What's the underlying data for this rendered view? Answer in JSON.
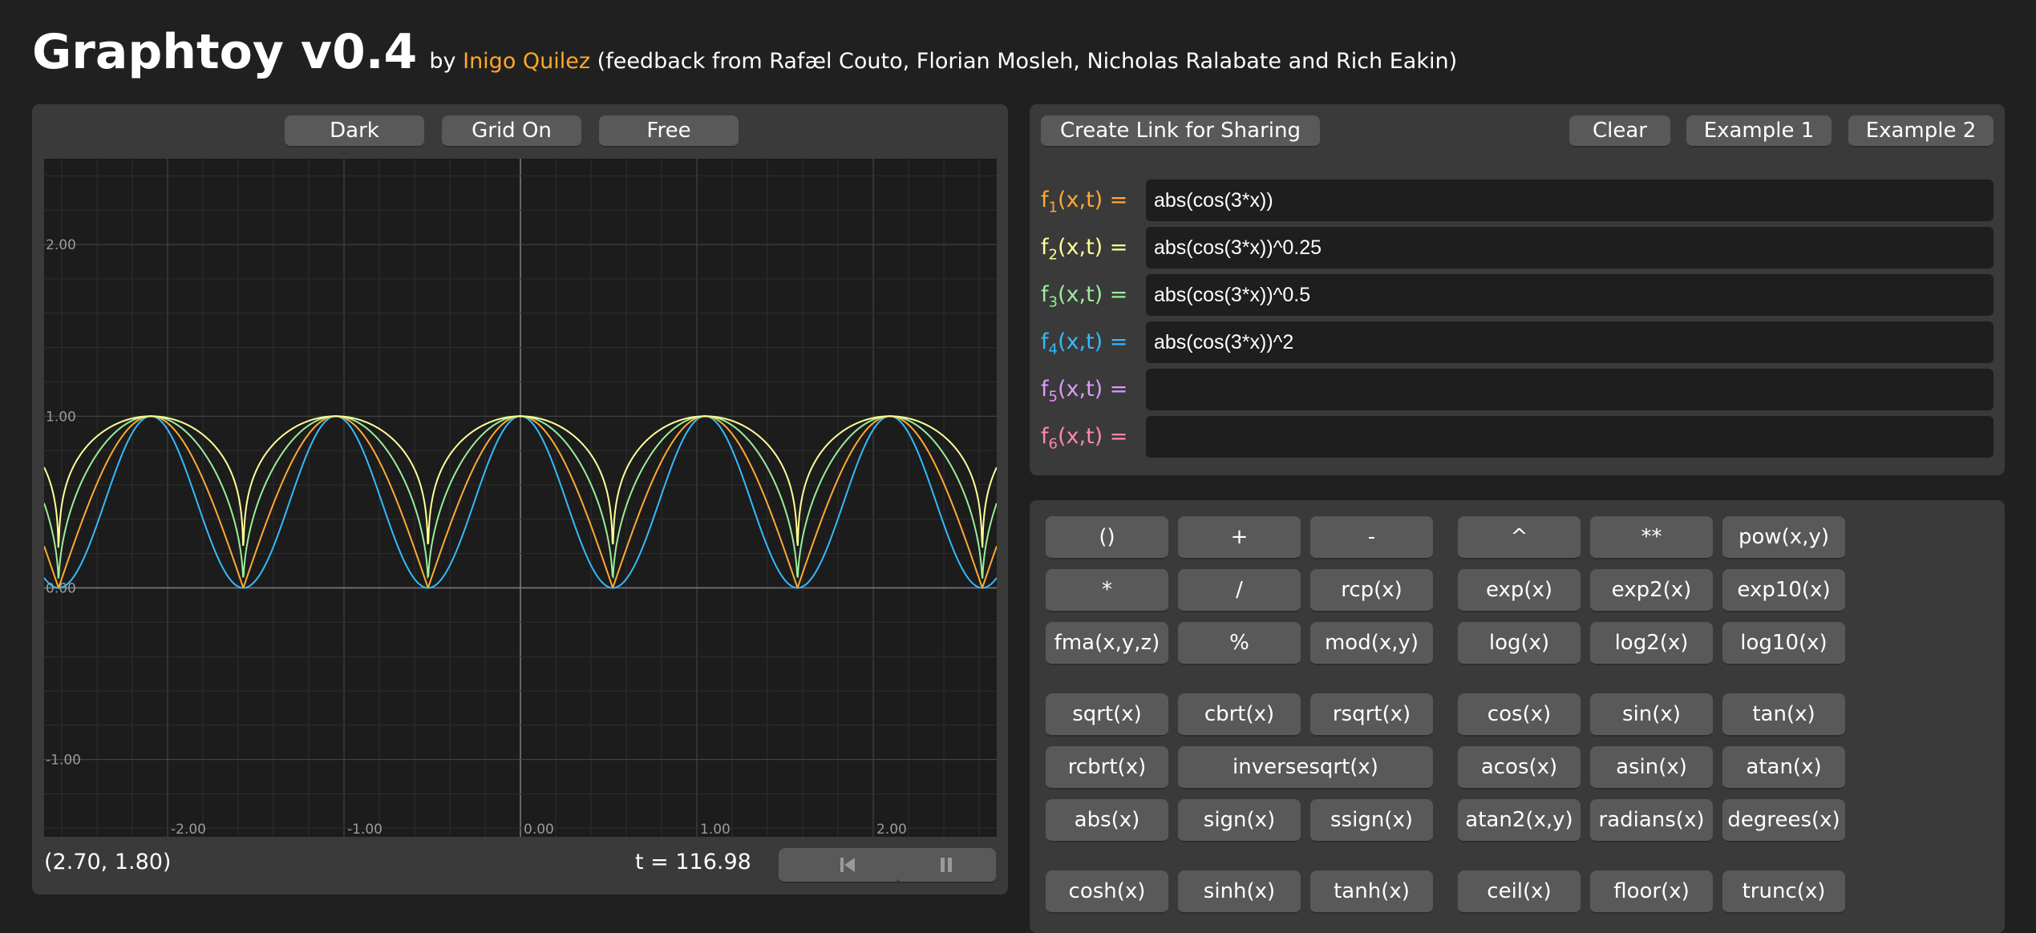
{
  "header": {
    "title": "Graphtoy v0.4",
    "by": "by",
    "author": "Inigo Quilez",
    "credits": "(feedback from Rafæl Couto, Florian Mosleh, Nicholas Ralabate and Rich Eakin)"
  },
  "graph": {
    "buttons": {
      "dark": "Dark",
      "grid": "Grid On",
      "free": "Free"
    },
    "coords": "(2.70, 1.80)",
    "time": "t = 116.98",
    "rewind_icon": "skip-back-icon",
    "pause_icon": "pause-icon"
  },
  "chart_data": {
    "type": "line",
    "title": "",
    "xlabel": "",
    "ylabel": "",
    "xlim": [
      -2.7,
      2.7
    ],
    "ylim": [
      -1.45,
      2.5
    ],
    "x_ticks": [
      "-2.00",
      "-1.00",
      "0.00",
      "1.00",
      "2.00"
    ],
    "y_ticks": [
      "2.00",
      "1.00",
      "0.00",
      "-1.00"
    ],
    "grid": true,
    "series": [
      {
        "formula": "abs(cos(3*x))",
        "color": "#ffaa33"
      },
      {
        "formula": "abs(cos(3*x))^0.25",
        "color": "#ffff99"
      },
      {
        "formula": "abs(cos(3*x))^0.5",
        "color": "#99ee99"
      },
      {
        "formula": "abs(cos(3*x))^2",
        "color": "#33bbff"
      }
    ]
  },
  "share": {
    "create_link": "Create Link for Sharing",
    "clear": "Clear",
    "example1": "Example 1",
    "example2": "Example 2"
  },
  "formulas": [
    {
      "name": "f",
      "sub": "1",
      "args": "(x,t) =",
      "value": "abs(cos(3*x))",
      "color": "#ffaa33"
    },
    {
      "name": "f",
      "sub": "2",
      "args": "(x,t) =",
      "value": "abs(cos(3*x))^0.25",
      "color": "#ffff99"
    },
    {
      "name": "f",
      "sub": "3",
      "args": "(x,t) =",
      "value": "abs(cos(3*x))^0.5",
      "color": "#99ee99"
    },
    {
      "name": "f",
      "sub": "4",
      "args": "(x,t) =",
      "value": "abs(cos(3*x))^2",
      "color": "#33bbff"
    },
    {
      "name": "f",
      "sub": "5",
      "args": "(x,t) =",
      "value": "",
      "color": "#dd99ff"
    },
    {
      "name": "f",
      "sub": "6",
      "args": "(x,t) =",
      "value": "",
      "color": "#ff88aa"
    }
  ],
  "keypad": {
    "left": [
      [
        "()",
        "+",
        "-"
      ],
      [
        "*",
        "/",
        "rcp(x)"
      ],
      [
        "fma(x,y,z)",
        "%",
        "mod(x,y)"
      ],
      [
        "sqrt(x)",
        "cbrt(x)",
        "rsqrt(x)"
      ],
      [
        "rcbrt(x)",
        "inversesqrt(x)"
      ],
      [
        "abs(x)",
        "sign(x)",
        "ssign(x)"
      ],
      [
        "cosh(x)",
        "sinh(x)",
        "tanh(x)"
      ]
    ],
    "right": [
      [
        "^",
        "**",
        "pow(x,y)"
      ],
      [
        "exp(x)",
        "exp2(x)",
        "exp10(x)"
      ],
      [
        "log(x)",
        "log2(x)",
        "log10(x)"
      ],
      [
        "cos(x)",
        "sin(x)",
        "tan(x)"
      ],
      [
        "acos(x)",
        "asin(x)",
        "atan(x)"
      ],
      [
        "atan2(x,y)",
        "radians(x)",
        "degrees(x)"
      ],
      [
        "ceil(x)",
        "floor(x)",
        "trunc(x)"
      ]
    ]
  }
}
